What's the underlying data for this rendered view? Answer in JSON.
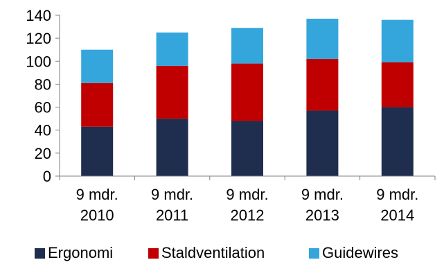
{
  "chart_data": {
    "type": "bar",
    "stacked": true,
    "categories": [
      [
        "9 mdr.",
        "2010"
      ],
      [
        "9 mdr.",
        "2011"
      ],
      [
        "9 mdr.",
        "2012"
      ],
      [
        "9 mdr.",
        "2013"
      ],
      [
        "9 mdr.",
        "2014"
      ]
    ],
    "series": [
      {
        "name": "Ergonomi",
        "color": "#1f2d4f",
        "values": [
          43,
          50,
          48,
          57,
          60
        ]
      },
      {
        "name": "Staldventilation",
        "color": "#c00000",
        "values": [
          38,
          46,
          50,
          45,
          39
        ]
      },
      {
        "name": "Guidewires",
        "color": "#35a6dc",
        "values": [
          29,
          29,
          31,
          35,
          37
        ]
      }
    ],
    "ylim": [
      0,
      140
    ],
    "yticks": [
      0,
      20,
      40,
      60,
      80,
      100,
      120,
      140
    ],
    "grid": false,
    "legend_position": "bottom"
  }
}
